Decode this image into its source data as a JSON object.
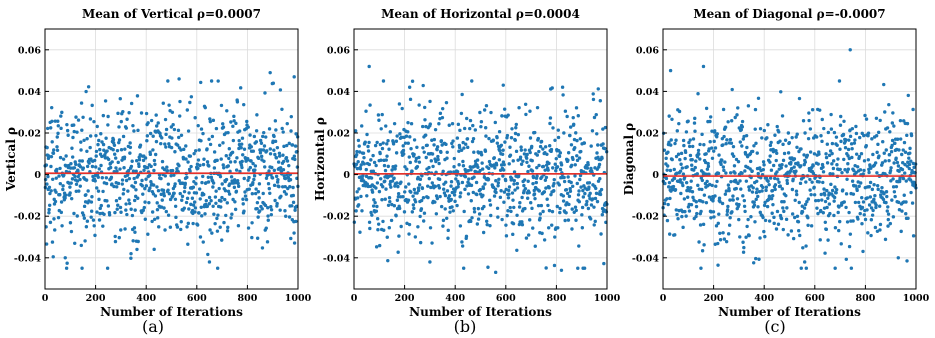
{
  "figure": {
    "captions": [
      "(a)",
      "(b)",
      "(c)"
    ]
  },
  "colors": {
    "points": "#1f77b4",
    "mean_line": "#e8312a",
    "grid": "#dcdcdc",
    "frame": "#000000"
  },
  "chart_data": [
    {
      "type": "scatter",
      "title": "Mean of Vertical ρ=0.0007",
      "xlabel": "Number of Iterations",
      "ylabel": "Vertical ρ",
      "xlim": [
        0,
        1000
      ],
      "ylim": [
        -0.055,
        0.07
      ],
      "xticks": [
        0,
        200,
        400,
        600,
        800,
        1000
      ],
      "yticks": [
        -0.04,
        -0.02,
        0,
        0.02,
        0.04,
        0.06
      ],
      "ytick_labels": [
        "-0.04",
        "-0.02",
        "0",
        "0.02",
        "0.04",
        "0.06"
      ],
      "grid": true,
      "mean_line": 0.0007,
      "n_points": 1000,
      "point_spread_std": 0.016,
      "highlights": [
        [
          530,
          0.046
        ],
        [
          890,
          0.049
        ],
        [
          985,
          0.047
        ],
        [
          650,
          -0.042
        ],
        [
          80,
          -0.04
        ],
        [
          340,
          -0.038
        ]
      ]
    },
    {
      "type": "scatter",
      "title": "Mean of Horizontal ρ=0.0004",
      "xlabel": "Number of Iterations",
      "ylabel": "Horizontal ρ",
      "xlim": [
        0,
        1000
      ],
      "ylim": [
        -0.055,
        0.07
      ],
      "xticks": [
        0,
        200,
        400,
        600,
        800,
        1000
      ],
      "yticks": [
        -0.04,
        -0.02,
        0,
        0.02,
        0.04,
        0.06
      ],
      "ytick_labels": [
        "-0.04",
        "-0.02",
        "0",
        "0.02",
        "0.04",
        "0.06"
      ],
      "grid": true,
      "mean_line": 0.0004,
      "n_points": 1000,
      "point_spread_std": 0.016,
      "highlights": [
        [
          60,
          0.052
        ],
        [
          220,
          0.042
        ],
        [
          590,
          0.043
        ],
        [
          560,
          -0.047
        ],
        [
          820,
          -0.046
        ],
        [
          300,
          -0.042
        ]
      ]
    },
    {
      "type": "scatter",
      "title": "Mean of Diagonal ρ=-0.0007",
      "xlabel": "Number of Iterations",
      "ylabel": "Diagonal ρ",
      "xlim": [
        0,
        1000
      ],
      "ylim": [
        -0.055,
        0.07
      ],
      "xticks": [
        0,
        200,
        400,
        600,
        800,
        1000
      ],
      "yticks": [
        -0.04,
        -0.02,
        0,
        0.02,
        0.04,
        0.06
      ],
      "ytick_labels": [
        "-0.04",
        "-0.02",
        "0",
        "0.02",
        "0.04",
        "0.06"
      ],
      "grid": true,
      "mean_line": -0.0007,
      "n_points": 1000,
      "point_spread_std": 0.016,
      "highlights": [
        [
          740,
          0.06
        ],
        [
          30,
          0.05
        ],
        [
          160,
          0.052
        ],
        [
          150,
          -0.045
        ],
        [
          560,
          -0.042
        ],
        [
          930,
          -0.04
        ]
      ]
    }
  ]
}
